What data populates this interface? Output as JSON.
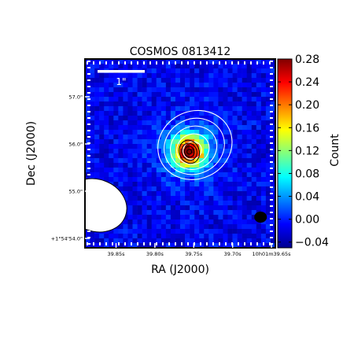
{
  "chart_data": {
    "type": "heatmap",
    "title": "COSMOS 0813412",
    "xlabel": "RA (J2000)",
    "ylabel": "Dec (J2000)",
    "colorbar_label": "Count",
    "colorbar_range": [
      -0.05,
      0.28
    ],
    "colorbar_ticks": [
      "0.28",
      "0.24",
      "0.20",
      "0.16",
      "0.12",
      "0.08",
      "0.04",
      "0.00",
      "−0.04"
    ],
    "colorbar_tick_values": [
      0.28,
      0.24,
      0.2,
      0.16,
      0.12,
      0.08,
      0.04,
      0.0,
      -0.04
    ],
    "colormap": [
      "#00008f",
      "#0000ff",
      "#0080ff",
      "#00ffff",
      "#80ff80",
      "#ffff00",
      "#ff8000",
      "#ff0000",
      "#800000"
    ],
    "x_tick_labels": [
      "39.85s",
      "39.80s",
      "39.75s",
      "39.70s",
      "10h01m39.65s"
    ],
    "x_tick_values_sec": [
      39.85,
      39.8,
      39.75,
      39.7,
      39.65
    ],
    "y_tick_labels": [
      "57.0\"",
      "56.0\"",
      "55.0\"",
      "+1°54'54.0\""
    ],
    "y_tick_values_arcsec": [
      57.0,
      56.0,
      55.0,
      54.0
    ],
    "scale_bar_label": "1\"",
    "source_peak": {
      "ra_sec": 39.756,
      "dec_arcsec": 55.85,
      "peak_value": 0.27
    },
    "beam": {
      "ra_sec": 39.664,
      "dec_arcsec": 54.45,
      "shape": "ellipse"
    },
    "masked_region": {
      "ra_sec": 39.876,
      "dec_arcsec": 54.7,
      "shape": "ellipse"
    },
    "contours_white_levels": 5,
    "contours_black_levels": 4,
    "grid": false
  }
}
